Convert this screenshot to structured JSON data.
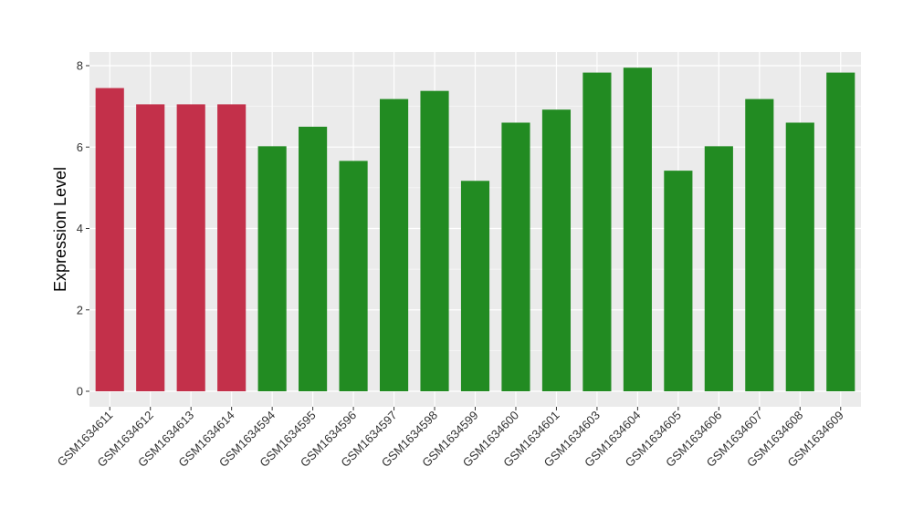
{
  "chart_data": {
    "type": "bar",
    "title": "",
    "xlabel": "",
    "ylabel": "Expression Level",
    "ylim": [
      0,
      8.3
    ],
    "yticks": [
      0,
      2,
      4,
      6,
      8
    ],
    "grid": true,
    "legend": "none",
    "panel_background": "#ebebeb",
    "grid_color": "#ffffff",
    "categories": [
      "GSM1634611",
      "GSM1634612",
      "GSM1634613",
      "GSM1634614",
      "GSM1634594",
      "GSM1634595",
      "GSM1634596",
      "GSM1634597",
      "GSM1634598",
      "GSM1634599",
      "GSM1634600",
      "GSM1634601",
      "GSM1634603",
      "GSM1634604",
      "GSM1634605",
      "GSM1634606",
      "GSM1634607",
      "GSM1634608",
      "GSM1634609"
    ],
    "values": [
      7.45,
      7.05,
      7.05,
      7.05,
      6.02,
      6.5,
      5.66,
      7.18,
      7.38,
      5.17,
      6.6,
      6.92,
      7.83,
      7.95,
      5.42,
      6.02,
      7.18,
      6.6,
      7.83
    ],
    "groups": [
      "g1",
      "g1",
      "g1",
      "g1",
      "g2",
      "g2",
      "g2",
      "g2",
      "g2",
      "g2",
      "g2",
      "g2",
      "g2",
      "g2",
      "g2",
      "g2",
      "g2",
      "g2",
      "g2"
    ],
    "group_colors": {
      "g1": "#c3304a",
      "g2": "#228b22"
    }
  }
}
